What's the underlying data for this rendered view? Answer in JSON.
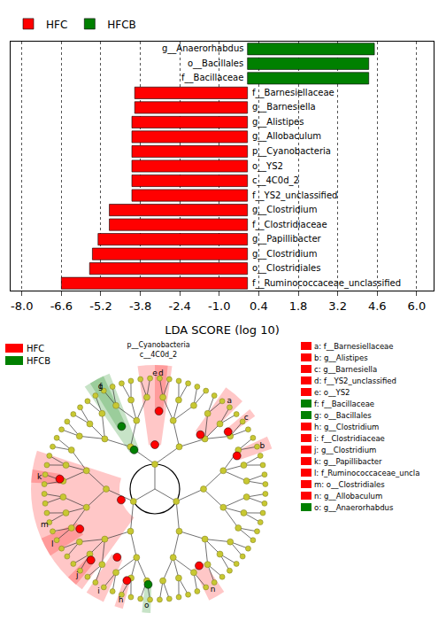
{
  "chart_data": {
    "type": "bar",
    "orientation": "horizontal",
    "categories": [
      "g__Anaerorhabdus",
      "o__Bacillales",
      "f__Bacillaceae",
      "f__Barnesiellaceae",
      "g__Barnesiella",
      "g__Alistipes",
      "g__Allobaculum",
      "p__Cyanobacteria",
      "o__YS2",
      "c__4C0d_2",
      "f__YS2_unclassified",
      "g__Clostridium",
      "f__Clostridiaceae",
      "g__Papillibacter",
      "g__Clostridium",
      "o__Clostridiales",
      "f__Ruminococcaceae_unclassified"
    ],
    "series": [
      {
        "name": "HFC",
        "color": "#ff0000",
        "values": [
          null,
          null,
          null,
          -4.0,
          -4.0,
          -4.1,
          -4.1,
          -4.1,
          -4.1,
          -4.1,
          -4.1,
          -4.9,
          -4.9,
          -5.3,
          -5.5,
          -5.6,
          -6.6
        ]
      },
      {
        "name": "HFCB",
        "color": "#008000",
        "values": [
          4.5,
          4.3,
          4.3,
          null,
          null,
          null,
          null,
          null,
          null,
          null,
          null,
          null,
          null,
          null,
          null,
          null,
          null
        ]
      }
    ],
    "x_label": "LDA SCORE (log 10)",
    "xlim": [
      -8.4,
      6.6
    ],
    "xticks": [
      {
        "value": -8.0,
        "label": "-8.0"
      },
      {
        "value": -6.6,
        "label": "-6.6"
      },
      {
        "value": -5.2,
        "label": "-5.2"
      },
      {
        "value": -3.8,
        "label": "-3.8"
      },
      {
        "value": -2.4,
        "label": "-2.4"
      },
      {
        "value": -1.0,
        "label": "-1.0"
      },
      {
        "value": 0.4,
        "label": "0.4"
      },
      {
        "value": 1.8,
        "label": "1.8"
      },
      {
        "value": 3.2,
        "label": "3.2"
      },
      {
        "value": 4.6,
        "label": "4.6"
      },
      {
        "value": 6.0,
        "label": "6.0"
      }
    ],
    "grid": true,
    "legend": "top left",
    "tick_labels": "x"
  },
  "cladogram": {
    "legend": [
      {
        "name": "HFC",
        "color": "#ff0000"
      },
      {
        "name": "HFCB",
        "color": "#008000"
      }
    ],
    "clade_labels": [
      "p__Cyanobacteria",
      "c__4C0d_2"
    ],
    "entries": [
      {
        "letter": "a",
        "text": "a: f__Barnesiellaceae",
        "group": "HFC"
      },
      {
        "letter": "b",
        "text": "b: g__Alistipes",
        "group": "HFC"
      },
      {
        "letter": "c",
        "text": "c: g__Barnesiella",
        "group": "HFC"
      },
      {
        "letter": "d",
        "text": "d: f__YS2_unclassified",
        "group": "HFC"
      },
      {
        "letter": "e",
        "text": "e: o__YS2",
        "group": "HFC"
      },
      {
        "letter": "f",
        "text": "f: f__Bacillaceae",
        "group": "HFCB"
      },
      {
        "letter": "g",
        "text": "g: o__Bacillales",
        "group": "HFCB"
      },
      {
        "letter": "h",
        "text": "h: g__Clostridium",
        "group": "HFC"
      },
      {
        "letter": "i",
        "text": "i: f__Clostridiaceae",
        "group": "HFC"
      },
      {
        "letter": "j",
        "text": "j: g__Clostridium",
        "group": "HFC"
      },
      {
        "letter": "k",
        "text": "k: g__Papillibacter",
        "group": "HFC"
      },
      {
        "letter": "l",
        "text": "l: f_Ruminococcaceae_uncla",
        "group": "HFC"
      },
      {
        "letter": "m",
        "text": "m: o__Clostridiales",
        "group": "HFC"
      },
      {
        "letter": "n",
        "text": "n: g__Allobaculum",
        "group": "HFC"
      },
      {
        "letter": "o",
        "text": "o: g__Anaerorhabdus",
        "group": "HFCB"
      }
    ]
  }
}
